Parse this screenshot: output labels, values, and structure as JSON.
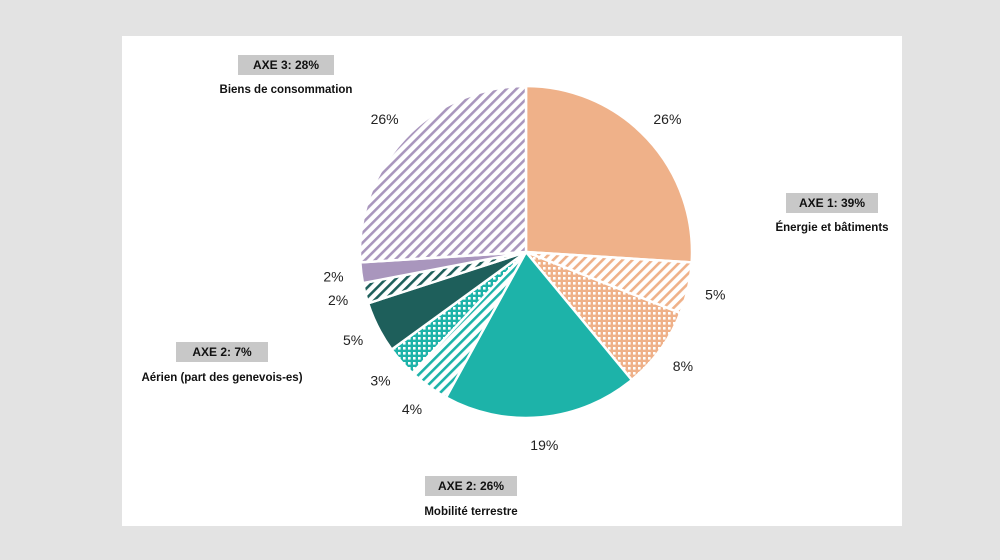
{
  "chart_data": {
    "type": "pie",
    "slices": [
      {
        "label": "26%",
        "value": 26,
        "color": "#efb189",
        "pattern": "solid",
        "group": 1
      },
      {
        "label": "5%",
        "value": 5,
        "color": "#efb189",
        "pattern": "hatch",
        "group": 1
      },
      {
        "label": "8%",
        "value": 8,
        "color": "#efb189",
        "pattern": "grid",
        "group": 1
      },
      {
        "label": "19%",
        "value": 19,
        "color": "#1db3a9",
        "pattern": "solid",
        "group": 2
      },
      {
        "label": "4%",
        "value": 4,
        "color": "#1db3a9",
        "pattern": "hatch",
        "group": 2
      },
      {
        "label": "3%",
        "value": 3,
        "color": "#1db3a9",
        "pattern": "grid",
        "group": 2
      },
      {
        "label": "5%",
        "value": 5,
        "color": "#1e5f5b",
        "pattern": "solid",
        "group": 3
      },
      {
        "label": "2%",
        "value": 2,
        "color": "#1e5f5b",
        "pattern": "hatch",
        "group": 3
      },
      {
        "label": "2%",
        "value": 2,
        "color": "#a996bd",
        "pattern": "solid",
        "group": 4
      },
      {
        "label": "26%",
        "value": 26,
        "color": "#a996bd",
        "pattern": "hatch",
        "group": 4
      }
    ],
    "groups": [
      {
        "badge": "AXE 1: 39%",
        "name": "Énergie et bâtiments"
      },
      {
        "badge": "AXE 2: 26%",
        "name": "Mobilité terrestre"
      },
      {
        "badge": "AXE 2: 7%",
        "name": "Aérien (part des genevois-es)"
      },
      {
        "badge": "AXE 3: 28%",
        "name": "Biens de consommation"
      }
    ]
  }
}
